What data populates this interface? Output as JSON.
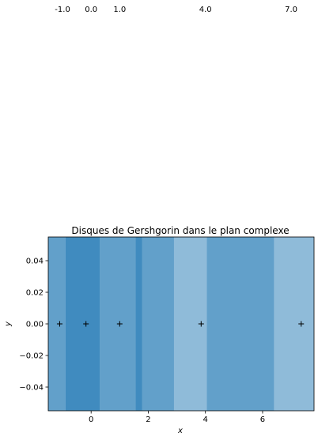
{
  "chart_data": {
    "type": "scatter",
    "title": "Disques de Gershgorin dans le plan complexe",
    "xlabel": "x",
    "ylabel": "y",
    "xlim": [
      -1.5,
      7.8
    ],
    "ylim": [
      -0.055,
      0.055
    ],
    "xticks": [
      0,
      2,
      4,
      6
    ],
    "xtick_labels": [
      "0",
      "2",
      "4",
      "6"
    ],
    "yticks": [
      0.04,
      0.02,
      0.0,
      -0.02,
      -0.04
    ],
    "ytick_labels": [
      "0.04",
      "0.02",
      "0.00",
      "−0.02",
      "−0.04"
    ],
    "top_labels": [
      {
        "x": -1.0,
        "text": "-1.0"
      },
      {
        "x": 0.0,
        "text": "0.0"
      },
      {
        "x": 1.0,
        "text": "1.0"
      },
      {
        "x": 4.0,
        "text": "4.0"
      },
      {
        "x": 7.0,
        "text": "7.0"
      }
    ],
    "band_color": "#1f77b4",
    "bands": [
      {
        "x0": -1.5,
        "x1": -0.9,
        "opacity": 0.7
      },
      {
        "x0": -0.9,
        "x1": 0.3,
        "opacity": 0.85
      },
      {
        "x0": 0.3,
        "x1": 1.55,
        "opacity": 0.7
      },
      {
        "x0": 1.55,
        "x1": 1.78,
        "opacity": 0.85
      },
      {
        "x0": 1.78,
        "x1": 2.9,
        "opacity": 0.7
      },
      {
        "x0": 2.9,
        "x1": 4.05,
        "opacity": 0.5
      },
      {
        "x0": 4.05,
        "x1": 6.4,
        "opacity": 0.7
      },
      {
        "x0": 6.4,
        "x1": 7.8,
        "opacity": 0.5
      }
    ],
    "points": [
      {
        "x": -1.1,
        "y": 0.0
      },
      {
        "x": -0.18,
        "y": 0.0
      },
      {
        "x": 1.0,
        "y": 0.0
      },
      {
        "x": 3.85,
        "y": 0.0
      },
      {
        "x": 7.35,
        "y": 0.0
      }
    ],
    "grid": false
  }
}
